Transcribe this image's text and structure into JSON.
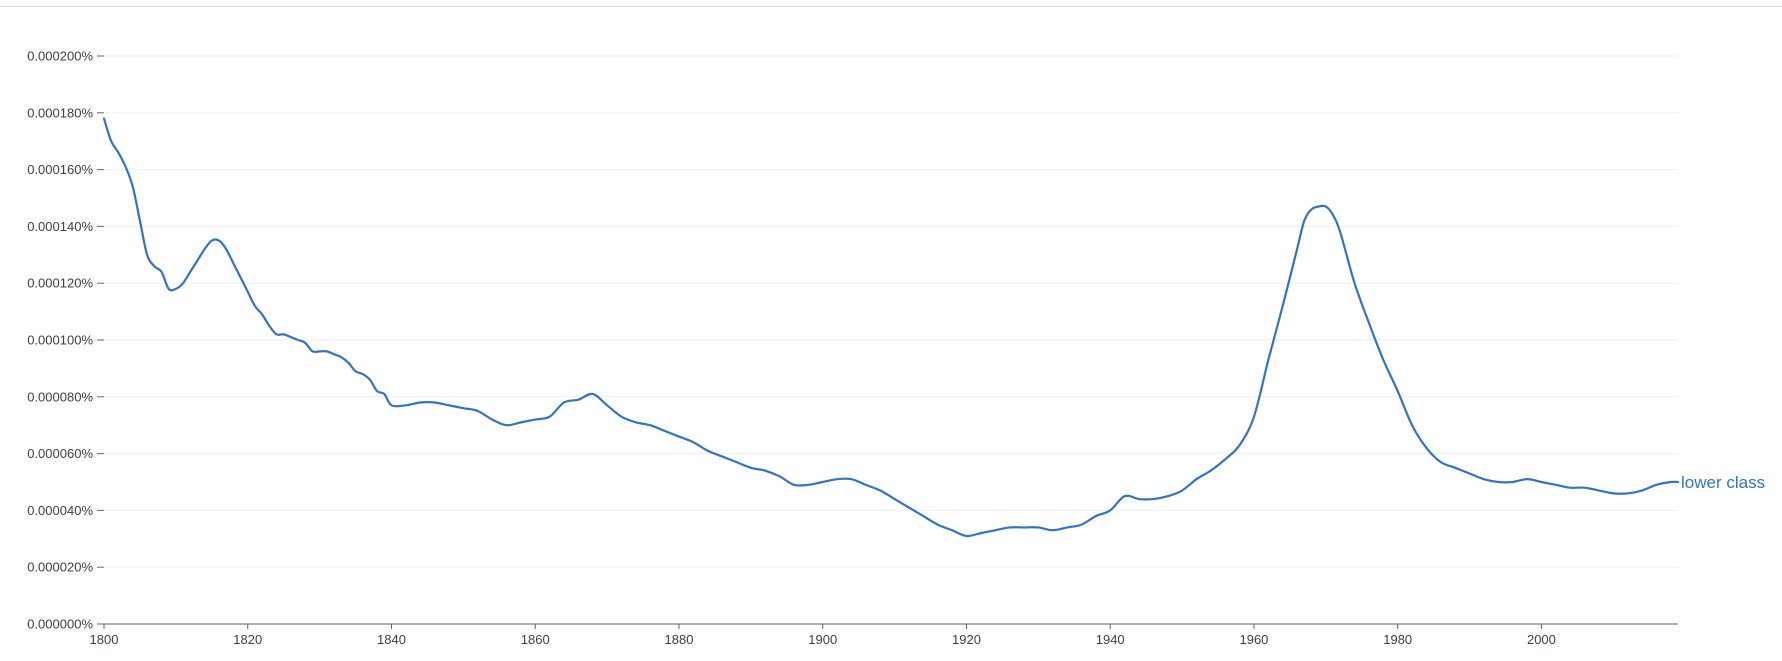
{
  "chart_data": {
    "type": "line",
    "title": "",
    "xlabel": "",
    "ylabel": "",
    "xlim": [
      1800,
      2019
    ],
    "ylim": [
      0,
      0.0002
    ],
    "grid": true,
    "x_ticks": [
      1800,
      1820,
      1840,
      1860,
      1880,
      1900,
      1920,
      1940,
      1960,
      1980,
      2000
    ],
    "x_tick_labels": [
      "1800",
      "1820",
      "1840",
      "1860",
      "1880",
      "1900",
      "1920",
      "1940",
      "1960",
      "1980",
      "2000"
    ],
    "y_ticks": [
      0,
      2e-05,
      4e-05,
      6e-05,
      8e-05,
      0.0001,
      0.00012,
      0.00014,
      0.00016,
      0.00018,
      0.0002
    ],
    "y_tick_labels": [
      "0.000000%",
      "0.000020%",
      "0.000040%",
      "0.000060%",
      "0.000080%",
      "0.000100%",
      "0.000120%",
      "0.000140%",
      "0.000160%",
      "0.000180%",
      "0.000200%"
    ],
    "series": [
      {
        "name": "lower class",
        "color": "#3173c6",
        "x": [
          1800,
          1801,
          1802,
          1803,
          1804,
          1805,
          1806,
          1807,
          1808,
          1809,
          1810,
          1811,
          1812,
          1813,
          1814,
          1815,
          1816,
          1817,
          1818,
          1819,
          1820,
          1821,
          1822,
          1823,
          1824,
          1825,
          1826,
          1827,
          1828,
          1829,
          1830,
          1831,
          1832,
          1833,
          1834,
          1835,
          1836,
          1837,
          1838,
          1839,
          1840,
          1842,
          1844,
          1846,
          1848,
          1850,
          1852,
          1854,
          1856,
          1858,
          1860,
          1862,
          1864,
          1866,
          1868,
          1870,
          1872,
          1874,
          1876,
          1878,
          1880,
          1882,
          1884,
          1886,
          1888,
          1890,
          1892,
          1894,
          1896,
          1898,
          1900,
          1902,
          1904,
          1906,
          1908,
          1910,
          1912,
          1914,
          1916,
          1918,
          1920,
          1922,
          1924,
          1926,
          1928,
          1930,
          1932,
          1934,
          1936,
          1938,
          1940,
          1942,
          1944,
          1946,
          1948,
          1950,
          1952,
          1954,
          1956,
          1958,
          1960,
          1962,
          1964,
          1966,
          1967,
          1968,
          1969,
          1970,
          1971,
          1972,
          1974,
          1976,
          1978,
          1980,
          1982,
          1984,
          1986,
          1988,
          1990,
          1992,
          1994,
          1996,
          1998,
          2000,
          2002,
          2004,
          2006,
          2008,
          2010,
          2012,
          2014,
          2016,
          2018,
          2019
        ],
        "values": [
          0.000178,
          0.00017,
          0.000166,
          0.000161,
          0.000154,
          0.000142,
          0.00013,
          0.000126,
          0.000124,
          0.000118,
          0.000118,
          0.00012,
          0.000124,
          0.000128,
          0.000132,
          0.000135,
          0.000135,
          0.000132,
          0.000127,
          0.000122,
          0.000117,
          0.000112,
          0.000109,
          0.000105,
          0.000102,
          0.000102,
          0.000101,
          0.0001,
          9.9e-05,
          9.6e-05,
          9.6e-05,
          9.6e-05,
          9.5e-05,
          9.4e-05,
          9.2e-05,
          8.9e-05,
          8.8e-05,
          8.6e-05,
          8.2e-05,
          8.1e-05,
          7.7e-05,
          7.7e-05,
          7.8e-05,
          7.8e-05,
          7.7e-05,
          7.6e-05,
          7.5e-05,
          7.2e-05,
          7e-05,
          7.1e-05,
          7.2e-05,
          7.3e-05,
          7.8e-05,
          7.9e-05,
          8.1e-05,
          7.7e-05,
          7.3e-05,
          7.1e-05,
          7e-05,
          6.8e-05,
          6.6e-05,
          6.4e-05,
          6.1e-05,
          5.9e-05,
          5.7e-05,
          5.5e-05,
          5.4e-05,
          5.2e-05,
          4.9e-05,
          4.9e-05,
          5e-05,
          5.1e-05,
          5.1e-05,
          4.9e-05,
          4.7e-05,
          4.4e-05,
          4.1e-05,
          3.8e-05,
          3.5e-05,
          3.3e-05,
          3.1e-05,
          3.2e-05,
          3.3e-05,
          3.4e-05,
          3.4e-05,
          3.4e-05,
          3.3e-05,
          3.4e-05,
          3.5e-05,
          3.8e-05,
          4e-05,
          4.5e-05,
          4.4e-05,
          4.4e-05,
          4.5e-05,
          4.7e-05,
          5.1e-05,
          5.4e-05,
          5.8e-05,
          6.3e-05,
          7.3e-05,
          9.3e-05,
          0.000112,
          0.000132,
          0.000142,
          0.000146,
          0.000147,
          0.000147,
          0.000144,
          0.000138,
          0.00012,
          0.000106,
          9.3e-05,
          8.2e-05,
          7e-05,
          6.2e-05,
          5.7e-05,
          5.5e-05,
          5.3e-05,
          5.1e-05,
          5e-05,
          5e-05,
          5.1e-05,
          5e-05,
          4.9e-05,
          4.8e-05,
          4.8e-05,
          4.7e-05,
          4.6e-05,
          4.6e-05,
          4.7e-05,
          4.9e-05,
          5e-05,
          5e-05
        ]
      }
    ]
  }
}
